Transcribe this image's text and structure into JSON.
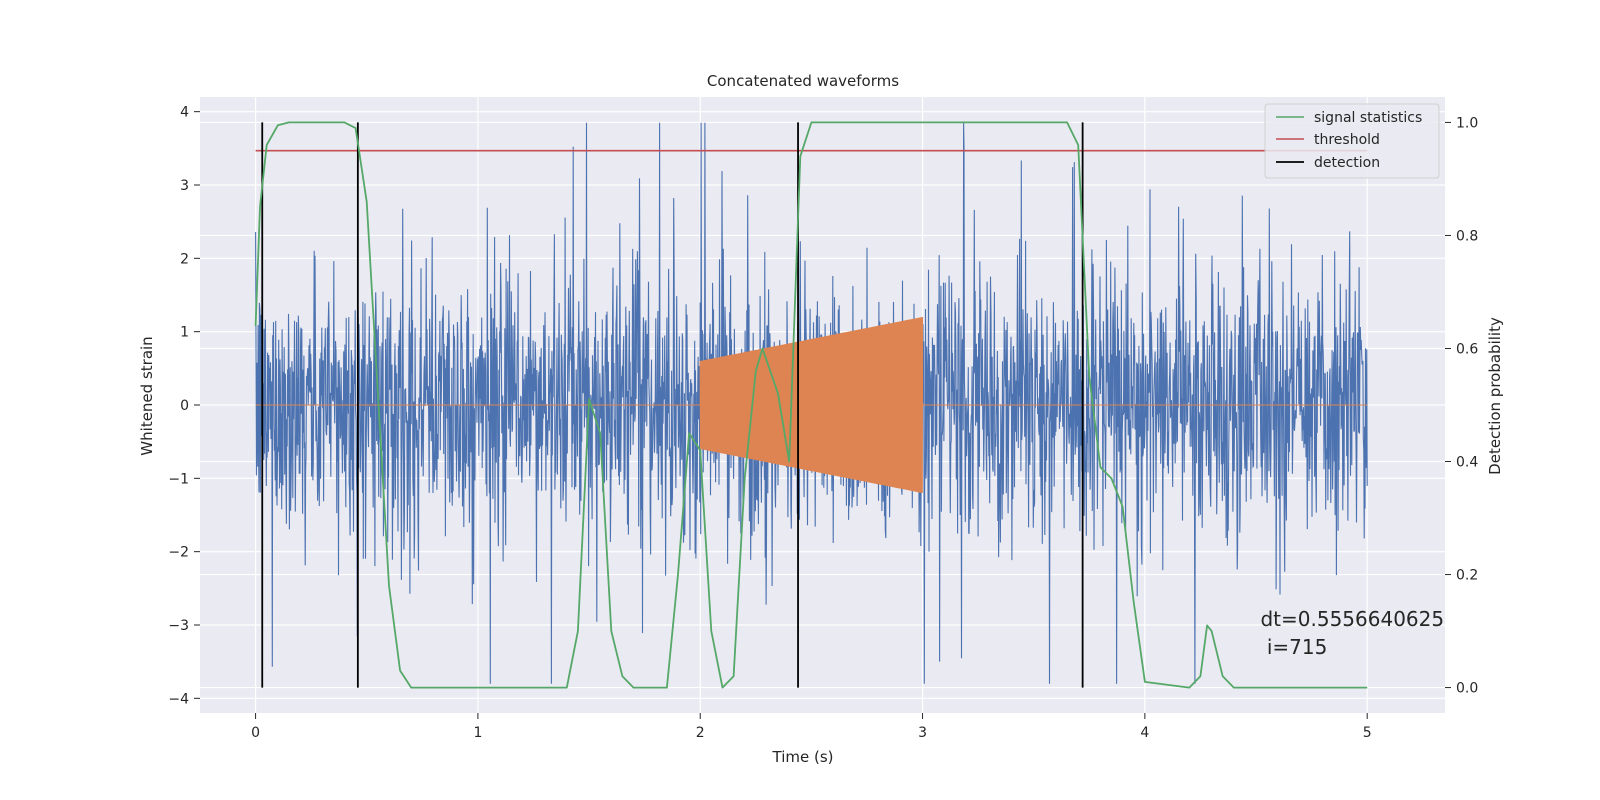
{
  "chart_data": {
    "type": "line",
    "title": "Concatenated waveforms",
    "xlabel": "Time (s)",
    "ylabel": "Whitened strain",
    "ylabel_right": "Detection probability",
    "xlim": [
      -0.25,
      5.35
    ],
    "ylim": [
      -4.2,
      4.2
    ],
    "ylim_right": [
      -0.045,
      1.045
    ],
    "x_ticks": [
      0,
      1,
      2,
      3,
      4,
      5
    ],
    "x_tick_labels": [
      "0",
      "1",
      "2",
      "3",
      "4",
      "5"
    ],
    "y_ticks": [
      4,
      3,
      2,
      1,
      0,
      -1,
      -2,
      -3,
      -4
    ],
    "y_tick_labels": [
      "4",
      "3",
      "2",
      "1",
      "0",
      "−1",
      "−2",
      "−3",
      "−4"
    ],
    "y_right_ticks": [
      1.0,
      0.8,
      0.6,
      0.4,
      0.2,
      0.0
    ],
    "y_right_tick_labels": [
      "1.0",
      "0.8",
      "0.6",
      "0.4",
      "0.2",
      "0.0"
    ],
    "grid": true,
    "legend_position": "top-right",
    "series": [
      {
        "name": "",
        "axis": "left",
        "kind": "noise",
        "color": "#4c72b0",
        "x_range": [
          0,
          5
        ],
        "approx_amplitude": 2.5,
        "peak_max": 3.85,
        "peak_min": -3.8
      },
      {
        "name": "",
        "axis": "left",
        "kind": "injected chirp",
        "color": "#dd8452",
        "x_range": [
          0,
          5
        ],
        "active_range": [
          2.0,
          3.0
        ],
        "amplitude_start": 0.6,
        "amplitude_end": 1.2
      },
      {
        "name": "signal statistics",
        "axis": "right",
        "color": "#55a868",
        "x": [
          0.0,
          0.02,
          0.05,
          0.1,
          0.15,
          0.4,
          0.45,
          0.5,
          0.55,
          0.6,
          0.65,
          0.7,
          1.4,
          1.45,
          1.5,
          1.55,
          1.6,
          1.65,
          1.7,
          1.85,
          1.9,
          1.95,
          2.0,
          2.05,
          2.1,
          2.15,
          2.2,
          2.25,
          2.28,
          2.35,
          2.4,
          2.45,
          2.5,
          2.55,
          3.65,
          3.7,
          3.75,
          3.8,
          3.85,
          3.9,
          3.95,
          4.0,
          4.2,
          4.25,
          4.28,
          4.3,
          4.35,
          4.4,
          5.0
        ],
        "y": [
          0.64,
          0.85,
          0.96,
          0.995,
          1.0,
          1.0,
          0.99,
          0.86,
          0.52,
          0.18,
          0.03,
          0.0,
          0.0,
          0.1,
          0.51,
          0.45,
          0.1,
          0.02,
          0.0,
          0.0,
          0.2,
          0.45,
          0.42,
          0.1,
          0.0,
          0.02,
          0.37,
          0.56,
          0.6,
          0.52,
          0.4,
          0.94,
          1.0,
          1.0,
          1.0,
          0.96,
          0.55,
          0.39,
          0.37,
          0.32,
          0.15,
          0.01,
          0.0,
          0.02,
          0.11,
          0.1,
          0.02,
          0.0,
          0.0
        ]
      },
      {
        "name": "threshold",
        "axis": "right",
        "color": "#c44e52",
        "x": [
          0,
          5
        ],
        "y": [
          0.95,
          0.95
        ]
      },
      {
        "name": "detection",
        "axis": "right",
        "color": "#000000",
        "vlines_x": [
          0.03,
          0.46,
          2.44,
          3.72
        ],
        "vline_range": [
          0,
          1
        ]
      }
    ],
    "annotation": {
      "text_line1": "dt=0.5556640625",
      "text_line2": " i=715",
      "x": 4.52,
      "y_right": 0.095
    }
  }
}
